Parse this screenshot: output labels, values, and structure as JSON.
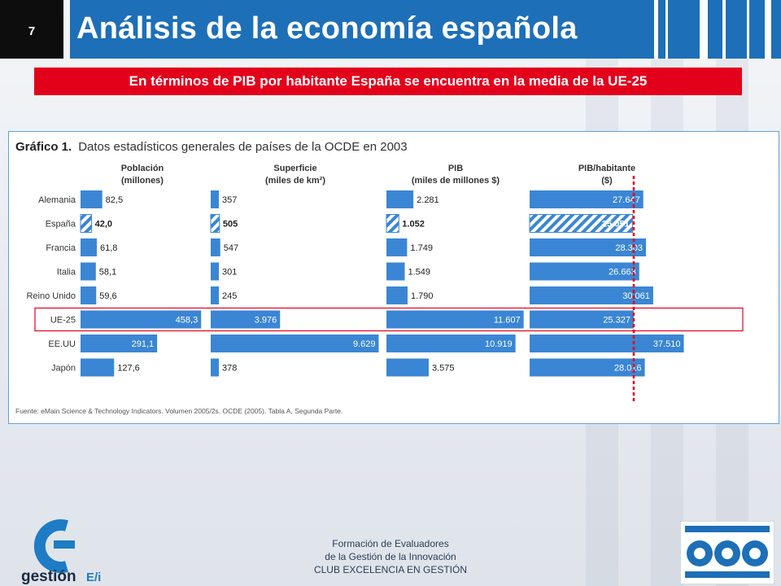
{
  "slide": {
    "page_number": "7",
    "title": "Análisis de la economía española",
    "subtitle": "En términos de PIB por habitante España se encuentra en la media de la UE-25"
  },
  "figure": {
    "label": "Gráfico 1.",
    "title": "Datos estadísticos generales de países de la OCDE en 2003",
    "source": "Fuente: eMain Science & Technology Indicators. Volumen 2005/2s. OCDE (2005). Tabla A, Segunda Parte."
  },
  "chart_data": {
    "type": "bar",
    "orientation": "horizontal",
    "categories": [
      "Alemania",
      "España",
      "Francia",
      "Italia",
      "Reino Unido",
      "UE-25",
      "EE.UU",
      "Japón"
    ],
    "highlight_category": "España",
    "highlight_row": "UE-25",
    "reference_line_series": "PIB/habitante ($)",
    "colors": {
      "bar": "#3a86d4",
      "highlight": "#3a86d4",
      "reference_line": "#e3001b"
    },
    "series": [
      {
        "name": "Población (millones)",
        "header": [
          "Población",
          "(millones)"
        ],
        "values": [
          82.5,
          42.0,
          61.8,
          58.1,
          59.6,
          458.3,
          291.1,
          127.6
        ],
        "labels": [
          "82,5",
          "42,0",
          "61,8",
          "58,1",
          "59,6",
          "458,3",
          "291,1",
          "127,6"
        ]
      },
      {
        "name": "Superficie (miles de km2)",
        "header": [
          "Superficie",
          "(miles de km²)"
        ],
        "values": [
          357,
          505,
          547,
          301,
          245,
          3976,
          9629,
          378
        ],
        "labels": [
          "357",
          "505",
          "547",
          "301",
          "245",
          "3.976",
          "9.629",
          "378"
        ]
      },
      {
        "name": "PIB (miles de millones $)",
        "header": [
          "PIB",
          "(miles de millones $)"
        ],
        "values": [
          2281,
          1052,
          1749,
          1549,
          1790,
          11607,
          10919,
          3575
        ],
        "labels": [
          "2.281",
          "1.052",
          "1.749",
          "1.549",
          "1.790",
          "11.607",
          "10.919",
          "3.575"
        ]
      },
      {
        "name": "PIB/habitante ($)",
        "header": [
          "PIB/habitante",
          "($)"
        ],
        "values": [
          27647,
          25051,
          28303,
          26663,
          30061,
          25327,
          37510,
          28016
        ],
        "labels": [
          "27.647",
          "25.051",
          "28.303",
          "26.663",
          "30.061",
          "25.327",
          "37.510",
          "28.016"
        ]
      }
    ]
  },
  "footer": {
    "line1": "Formación de Evaluadores",
    "line2": "de la Gestión de la Innovación",
    "line3": "CLUB EXCELENCIA EN GESTIÓN",
    "logo_text": "gestión E/i"
  }
}
